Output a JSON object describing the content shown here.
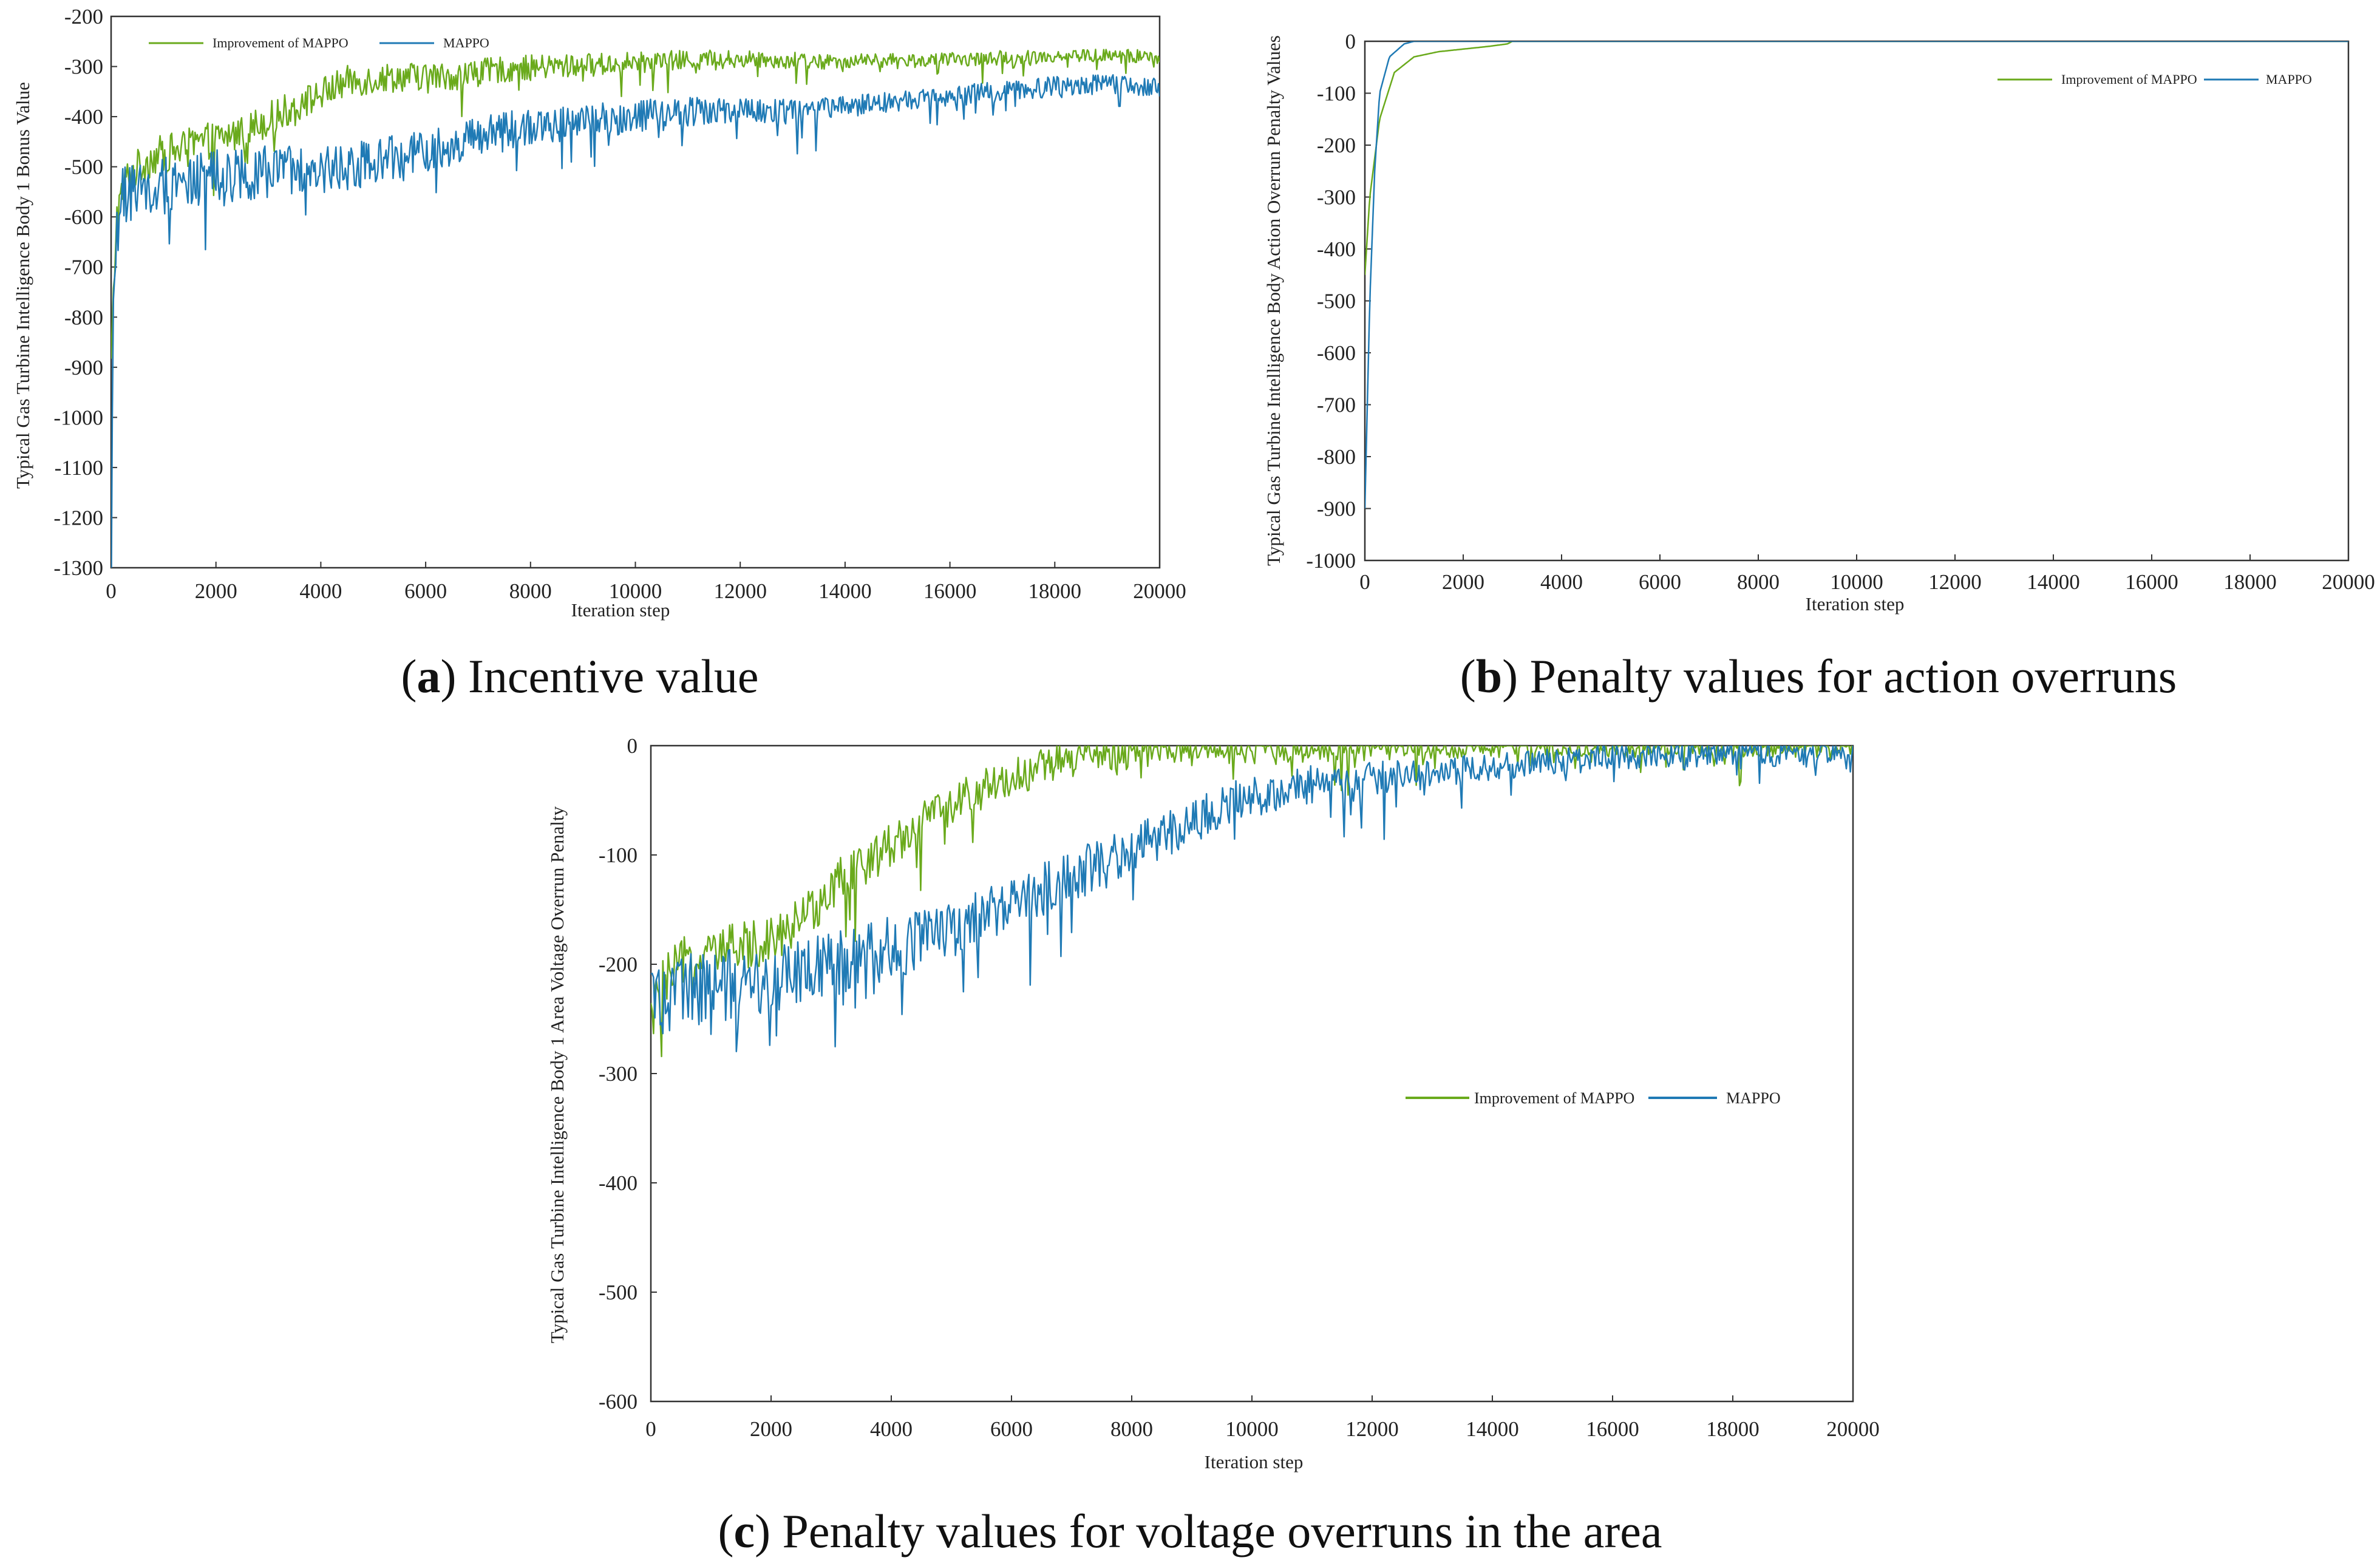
{
  "figure": {
    "colors": {
      "improved": "#6aaa1c",
      "mappo": "#1f7ab5",
      "axis": "#333333"
    },
    "legend": {
      "improved": "Improvement of MAPPO",
      "mappo": "MAPPO"
    },
    "captions": [
      {
        "letter": "a",
        "text": " Incentive value"
      },
      {
        "letter": "b",
        "text": " Penalty values for action overruns"
      },
      {
        "letter": "c",
        "text": " Penalty values for voltage overruns in the area"
      }
    ]
  },
  "chart_data": [
    {
      "type": "line",
      "panel": "a",
      "title": "Incentive value",
      "xlabel": "Iteration step",
      "ylabel": "Typical Gas Turbine Intelligence Body 1 Bonus Value",
      "xlim": [
        0,
        20000
      ],
      "ylim": [
        -1300,
        -200
      ],
      "xticks": [
        0,
        2000,
        4000,
        6000,
        8000,
        10000,
        12000,
        14000,
        16000,
        18000,
        20000
      ],
      "yticks": [
        -200,
        -300,
        -400,
        -500,
        -600,
        -700,
        -800,
        -900,
        -1000,
        -1100,
        -1200,
        -1300
      ],
      "legend_position": "top-left",
      "series": [
        {
          "name": "Improvement of MAPPO",
          "x": [
            0,
            100,
            300,
            800,
            1500,
            2500,
            3500,
            4500,
            5500,
            6500,
            7500,
            8500,
            9500,
            10500,
            11500,
            12500,
            13500,
            14500,
            15500,
            16500,
            17500,
            18500,
            19500,
            20000
          ],
          "y": [
            -900,
            -600,
            -520,
            -480,
            -460,
            -430,
            -380,
            -330,
            -320,
            -320,
            -305,
            -300,
            -295,
            -290,
            -285,
            -285,
            -290,
            -288,
            -288,
            -285,
            -280,
            -278,
            -280,
            -280
          ],
          "noise": 40
        },
        {
          "name": "MAPPO",
          "x": [
            0,
            50,
            200,
            500,
            1000,
            2000,
            3000,
            4000,
            5000,
            6000,
            7000,
            8000,
            9000,
            10000,
            11000,
            12000,
            13000,
            14000,
            15000,
            16000,
            17000,
            18000,
            19000,
            20000
          ],
          "y": [
            -1250,
            -700,
            -560,
            -540,
            -530,
            -520,
            -510,
            -510,
            -490,
            -470,
            -440,
            -420,
            -410,
            -400,
            -390,
            -390,
            -390,
            -380,
            -370,
            -360,
            -350,
            -340,
            -335,
            -345
          ],
          "noise": 60
        }
      ]
    },
    {
      "type": "line",
      "panel": "b",
      "title": "Penalty values for action overruns",
      "xlabel": "Iteration step",
      "ylabel": "Typical Gas Turbine Intelligence Body Action Overrun Penalty Values",
      "xlim": [
        0,
        20000
      ],
      "ylim": [
        -1000,
        0
      ],
      "xticks": [
        0,
        2000,
        4000,
        6000,
        8000,
        10000,
        12000,
        14000,
        16000,
        18000,
        20000
      ],
      "yticks": [
        0,
        -100,
        -200,
        -300,
        -400,
        -500,
        -600,
        -700,
        -800,
        -900,
        -1000
      ],
      "legend_position": "top-right",
      "series": [
        {
          "name": "Improvement of MAPPO",
          "x": [
            0,
            100,
            300,
            600,
            1000,
            1500,
            2000,
            2500,
            2900,
            3000,
            9200,
            9300,
            12000,
            12700,
            20000
          ],
          "y": [
            -450,
            -300,
            -150,
            -60,
            -30,
            -20,
            -15,
            -10,
            -5,
            0,
            0,
            0,
            0,
            0,
            0
          ],
          "noise": 0
        },
        {
          "name": "MAPPO",
          "x": [
            0,
            50,
            100,
            200,
            300,
            500,
            800,
            1000,
            20000
          ],
          "y": [
            -900,
            -700,
            -500,
            -250,
            -100,
            -30,
            -5,
            0,
            0
          ],
          "noise": 0
        }
      ]
    },
    {
      "type": "line",
      "panel": "c",
      "title": "Penalty values for voltage overruns in the area",
      "xlabel": "Iteration step",
      "ylabel": "Typical Gas Turbine Intelligence Body 1 Area Voltage Overrun Penalty",
      "xlim": [
        0,
        20000
      ],
      "ylim": [
        -600,
        0
      ],
      "xticks": [
        0,
        2000,
        4000,
        6000,
        8000,
        10000,
        12000,
        14000,
        16000,
        18000,
        20000
      ],
      "yticks": [
        0,
        -100,
        -200,
        -300,
        -400,
        -500,
        -600
      ],
      "legend_position": "right",
      "series": [
        {
          "name": "Improvement of MAPPO",
          "x": [
            0,
            200,
            500,
            1000,
            1500,
            2000,
            2500,
            3000,
            3500,
            4000,
            4500,
            5000,
            5500,
            6000,
            6500,
            7000,
            7500,
            8000,
            9000,
            10000,
            12000,
            14000,
            16000,
            18000,
            20000
          ],
          "y": [
            -250,
            -220,
            -200,
            -190,
            -185,
            -175,
            -160,
            -130,
            -110,
            -90,
            -70,
            -55,
            -40,
            -30,
            -20,
            -12,
            -8,
            -5,
            -4,
            -3,
            -2,
            -2,
            -2,
            -2,
            -2
          ],
          "noise": 25
        },
        {
          "name": "MAPPO",
          "x": [
            0,
            200,
            500,
            1000,
            2000,
            3000,
            4000,
            5000,
            6000,
            7000,
            8000,
            9000,
            10000,
            11000,
            12000,
            13000,
            14000,
            15000,
            16000,
            17000,
            18000,
            19000,
            20000
          ],
          "y": [
            -230,
            -230,
            -225,
            -220,
            -215,
            -200,
            -185,
            -170,
            -145,
            -120,
            -95,
            -70,
            -45,
            -35,
            -30,
            -25,
            -20,
            -15,
            -10,
            -8,
            -7,
            -7,
            -10
          ],
          "noise": 35
        }
      ]
    }
  ]
}
